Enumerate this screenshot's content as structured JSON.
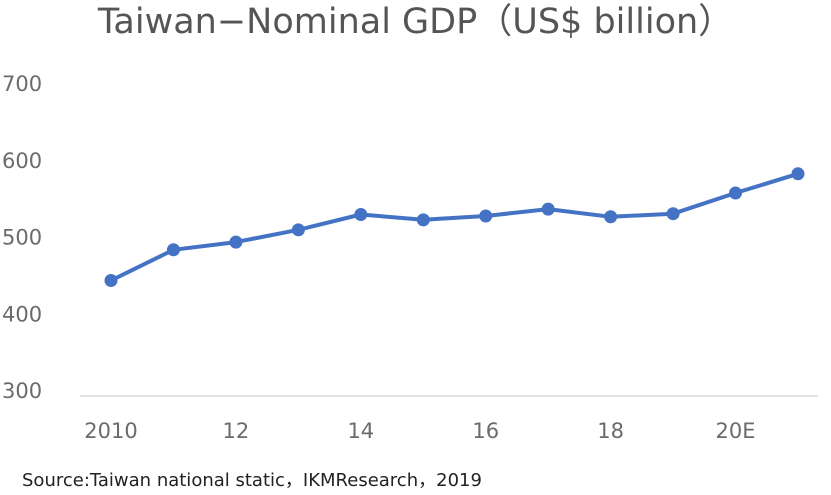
{
  "chart_data": {
    "type": "line",
    "title": "Taiwan−Nominal GDP（US$ billion）",
    "source": "Source:Taiwan national static，IKMResearch，2019",
    "x": [
      2010,
      2011,
      2012,
      2013,
      2014,
      2015,
      2016,
      2017,
      2018,
      2019,
      2020,
      2021
    ],
    "x_tick_labels": [
      "2010",
      "12",
      "14",
      "16",
      "18",
      "20E"
    ],
    "x_tick_positions": [
      2010,
      2012,
      2014,
      2016,
      2018,
      2020
    ],
    "series": [
      {
        "values": [
          444,
          484,
          494,
          510,
          530,
          523,
          528,
          537,
          527,
          531,
          558,
          583
        ]
      }
    ],
    "ylim": [
      300,
      700
    ],
    "y_ticks": [
      "300",
      "400",
      "500",
      "600",
      "700"
    ],
    "y_tick_values": [
      300,
      400,
      500,
      600,
      700
    ],
    "grid": false,
    "colors": {
      "line": "#4472C4",
      "axis": "#d9d9d9",
      "text": "#6b6b6b"
    }
  }
}
